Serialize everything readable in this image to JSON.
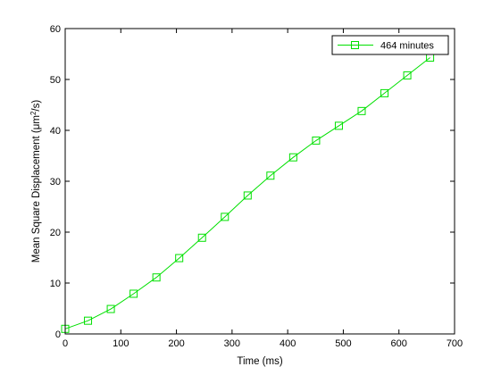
{
  "chart_data": {
    "type": "line",
    "xlabel": "Time (ms)",
    "ylabel_prefix": "Mean Square Displacement (",
    "ylabel_unit": "μm",
    "ylabel_sup": "2",
    "ylabel_suffix": "/s)",
    "xlim": [
      0,
      700
    ],
    "ylim": [
      0,
      60
    ],
    "xticks": [
      0,
      100,
      200,
      300,
      400,
      500,
      600,
      700
    ],
    "yticks": [
      0,
      10,
      20,
      30,
      40,
      50,
      60
    ],
    "grid": false,
    "legend_position": "top-right",
    "series": [
      {
        "name": "464 minutes",
        "color": "#00e000",
        "marker": "square",
        "x": [
          0,
          41,
          82,
          123,
          164,
          205,
          246,
          287,
          328,
          369,
          410,
          451,
          492,
          533,
          574,
          615,
          656
        ],
        "y": [
          1.0,
          2.6,
          4.9,
          7.9,
          11.1,
          14.9,
          18.9,
          23.0,
          27.2,
          31.1,
          34.7,
          38.0,
          40.9,
          43.8,
          47.3,
          50.8,
          54.3
        ]
      }
    ]
  }
}
